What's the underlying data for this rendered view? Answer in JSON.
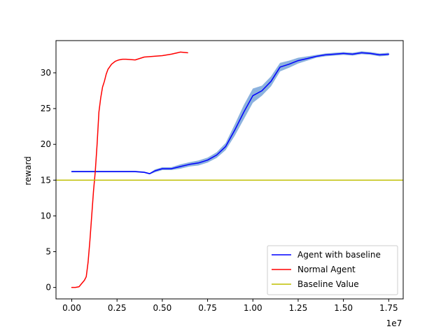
{
  "chart_data": {
    "type": "line",
    "title": "",
    "xlabel": "",
    "ylabel": "reward",
    "x_scale_label": "1e7",
    "xlim": [
      -0.087,
      1.83
    ],
    "ylim": [
      -1.6,
      34.5
    ],
    "x_ticks": [
      0.0,
      0.25,
      0.5,
      0.75,
      1.0,
      1.25,
      1.5,
      1.75
    ],
    "x_tick_labels": [
      "0.00",
      "0.25",
      "0.50",
      "0.75",
      "1.00",
      "1.25",
      "1.50",
      "1.75"
    ],
    "y_ticks": [
      0,
      5,
      10,
      15,
      20,
      25,
      30
    ],
    "y_tick_labels": [
      "0",
      "5",
      "10",
      "15",
      "20",
      "25",
      "30"
    ],
    "grid": false,
    "legend_position": "lower-right",
    "series": [
      {
        "name": "Agent with baseline",
        "color": "#0000ff",
        "band_color": "#6f9fd6",
        "x": [
          0.0,
          0.1,
          0.2,
          0.3,
          0.35,
          0.4,
          0.43,
          0.46,
          0.5,
          0.55,
          0.6,
          0.65,
          0.7,
          0.75,
          0.8,
          0.85,
          0.9,
          0.95,
          1.0,
          1.05,
          1.1,
          1.15,
          1.2,
          1.25,
          1.3,
          1.35,
          1.4,
          1.45,
          1.5,
          1.55,
          1.6,
          1.65,
          1.7,
          1.75
        ],
        "y": [
          16.2,
          16.2,
          16.2,
          16.2,
          16.2,
          16.1,
          15.9,
          16.3,
          16.6,
          16.6,
          16.9,
          17.2,
          17.4,
          17.8,
          18.5,
          19.7,
          22.0,
          24.5,
          26.8,
          27.5,
          28.8,
          30.8,
          31.2,
          31.7,
          32.0,
          32.3,
          32.5,
          32.6,
          32.7,
          32.6,
          32.8,
          32.7,
          32.5,
          32.6
        ],
        "band_width": [
          0.1,
          0.1,
          0.1,
          0.1,
          0.1,
          0.1,
          0.1,
          0.2,
          0.2,
          0.2,
          0.3,
          0.3,
          0.35,
          0.35,
          0.4,
          0.5,
          0.8,
          1.0,
          1.0,
          0.7,
          0.7,
          0.6,
          0.5,
          0.4,
          0.3,
          0.2,
          0.2,
          0.2,
          0.2,
          0.2,
          0.2,
          0.2,
          0.2,
          0.2
        ]
      },
      {
        "name": "Normal Agent",
        "color": "#ff0000",
        "x": [
          0.0,
          0.02,
          0.04,
          0.05,
          0.06,
          0.07,
          0.08,
          0.09,
          0.1,
          0.11,
          0.12,
          0.13,
          0.14,
          0.15,
          0.16,
          0.17,
          0.18,
          0.19,
          0.2,
          0.22,
          0.24,
          0.26,
          0.28,
          0.3,
          0.35,
          0.4,
          0.45,
          0.5,
          0.55,
          0.6,
          0.64
        ],
        "y": [
          0.0,
          0.0,
          0.1,
          0.4,
          0.7,
          1.0,
          1.5,
          3.5,
          6.5,
          10.0,
          13.5,
          16.2,
          20.0,
          24.5,
          26.5,
          28.0,
          28.8,
          29.8,
          30.5,
          31.2,
          31.6,
          31.8,
          31.9,
          31.9,
          31.8,
          32.2,
          32.3,
          32.4,
          32.6,
          32.9,
          32.8
        ]
      },
      {
        "name": "Baseline Value",
        "color": "#bfbf00",
        "y_constant": 15.0
      }
    ]
  }
}
